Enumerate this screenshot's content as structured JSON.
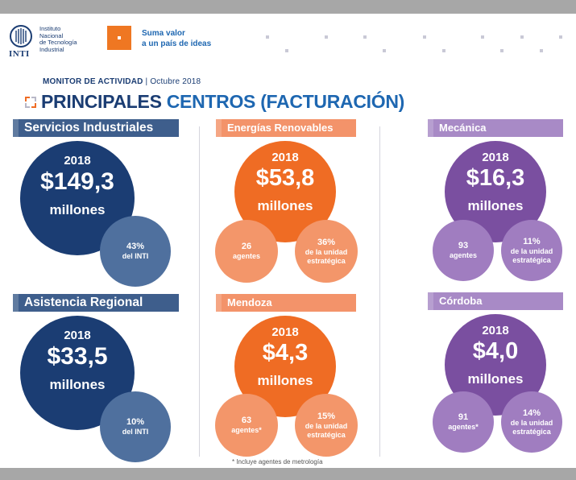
{
  "header": {
    "logo_name": "INTI",
    "logo_text": [
      "Instituto",
      "Nacional",
      "de Tecnología",
      "Industrial"
    ],
    "tagline": [
      "Suma valor",
      "a un país de ideas"
    ],
    "monitor_label": "MONITOR DE ACTIVIDAD",
    "monitor_date": "| Octubre 2018",
    "title_part1": "PRINCIPALES",
    "title_part2": "CENTROS",
    "title_part3": "(FACTURACIÓN)"
  },
  "colors": {
    "navy": "#1b3d73",
    "slate": "#4f709e",
    "orange": "#ef6c24",
    "orange_light": "#f3966a",
    "purple": "#7a4fa0",
    "purple_light": "#a07dc0",
    "header_navy": "#3e5e8c",
    "header_orange": "#f3936a",
    "header_purple": "#a88ac6"
  },
  "cards": [
    {
      "name": "Servicios Industriales",
      "year": "2018",
      "amount": "$149,3",
      "unit": "millones",
      "stat": "43%",
      "stat_label": "del INTI"
    },
    {
      "name": "Energías Renovables",
      "year": "2018",
      "amount": "$53,8",
      "unit": "millones",
      "agents": "26",
      "agents_label": "agentes",
      "stat": "36%",
      "stat_label": [
        "de la unidad",
        "estratégica"
      ]
    },
    {
      "name": "Mecánica",
      "year": "2018",
      "amount": "$16,3",
      "unit": "millones",
      "agents": "93",
      "agents_label": "agentes",
      "stat": "11%",
      "stat_label": [
        "de la unidad",
        "estratégica"
      ]
    },
    {
      "name": "Asistencia Regional",
      "year": "2018",
      "amount": "$33,5",
      "unit": "millones",
      "stat": "10%",
      "stat_label": "del INTI"
    },
    {
      "name": "Mendoza",
      "year": "2018",
      "amount": "$4,3",
      "unit": "millones",
      "agents": "63",
      "agents_label": "agentes*",
      "stat": "15%",
      "stat_label": [
        "de la unidad",
        "estratégica"
      ]
    },
    {
      "name": "Córdoba",
      "year": "2018",
      "amount": "$4,0",
      "unit": "millones",
      "agents": "91",
      "agents_label": "agentes*",
      "stat": "14%",
      "stat_label": [
        "de la unidad",
        "estratégica"
      ]
    }
  ],
  "footnote": "* Incluye agentes de metrología"
}
